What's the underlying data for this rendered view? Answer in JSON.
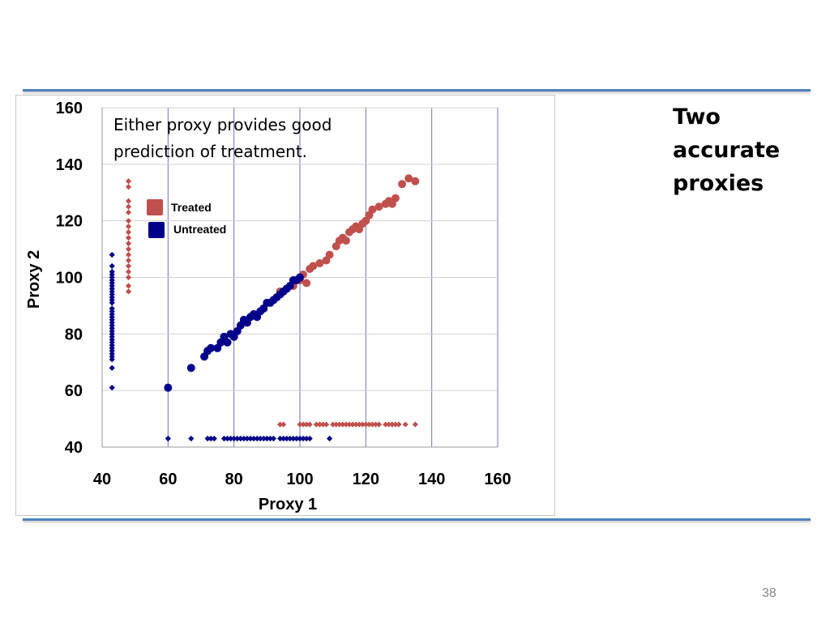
{
  "slide": {
    "side_title_lines": [
      "Two",
      "accurate",
      "proxies"
    ],
    "page_number": "38"
  },
  "colors": {
    "treated": "#c0504d",
    "untreated": "#00008b",
    "gridline": "#7070c0",
    "rule": "#4f81bd"
  },
  "chart_data": {
    "type": "scatter",
    "title": "",
    "xlabel": "Proxy 1",
    "ylabel": "Proxy 2",
    "xlim": [
      40,
      160
    ],
    "ylim": [
      40,
      160
    ],
    "x_ticks": [
      40,
      60,
      80,
      100,
      120,
      140,
      160
    ],
    "y_ticks": [
      40,
      60,
      80,
      100,
      120,
      140,
      160
    ],
    "grid": "vertical-lines",
    "legend_position": "upper-left",
    "annotation_lines": [
      "Either proxy provides good",
      "prediction of treatment."
    ],
    "series": [
      {
        "name": "Treated",
        "color": "#c0504d",
        "groups": [
          {
            "marker": "circle",
            "points": [
              [
                94,
                95
              ],
              [
                96,
                96
              ],
              [
                98,
                97
              ],
              [
                100,
                99
              ],
              [
                101,
                101
              ],
              [
                102,
                98
              ],
              [
                103,
                103
              ],
              [
                104,
                104
              ],
              [
                106,
                105
              ],
              [
                108,
                106
              ],
              [
                109,
                108
              ],
              [
                111,
                111
              ],
              [
                112,
                113
              ],
              [
                113,
                114
              ],
              [
                114,
                113
              ],
              [
                115,
                116
              ],
              [
                116,
                117
              ],
              [
                117,
                118
              ],
              [
                118,
                117
              ],
              [
                119,
                119
              ],
              [
                120,
                120
              ],
              [
                121,
                122
              ],
              [
                122,
                124
              ],
              [
                124,
                125
              ],
              [
                126,
                126
              ],
              [
                127,
                127
              ],
              [
                128,
                126
              ],
              [
                129,
                128
              ],
              [
                131,
                133
              ],
              [
                133,
                135
              ],
              [
                135,
                134
              ]
            ]
          },
          {
            "marker": "diamond",
            "points": [
              [
                48,
                134
              ],
              [
                48,
                132
              ],
              [
                48,
                127
              ],
              [
                48,
                125
              ],
              [
                48,
                123
              ],
              [
                48,
                120
              ],
              [
                48,
                118
              ],
              [
                48,
                116
              ],
              [
                48,
                114
              ],
              [
                48,
                112
              ],
              [
                48,
                110
              ],
              [
                48,
                108
              ],
              [
                48,
                106
              ],
              [
                48,
                104
              ],
              [
                48,
                102
              ],
              [
                48,
                100
              ],
              [
                48,
                97
              ],
              [
                48,
                95
              ]
            ]
          },
          {
            "marker": "diamond",
            "points": [
              [
                94,
                48
              ],
              [
                95,
                48
              ],
              [
                100,
                48
              ],
              [
                101,
                48
              ],
              [
                102,
                48
              ],
              [
                103,
                48
              ],
              [
                105,
                48
              ],
              [
                106,
                48
              ],
              [
                107,
                48
              ],
              [
                108,
                48
              ],
              [
                110,
                48
              ],
              [
                111,
                48
              ],
              [
                112,
                48
              ],
              [
                113,
                48
              ],
              [
                114,
                48
              ],
              [
                115,
                48
              ],
              [
                116,
                48
              ],
              [
                117,
                48
              ],
              [
                118,
                48
              ],
              [
                119,
                48
              ],
              [
                120,
                48
              ],
              [
                121,
                48
              ],
              [
                122,
                48
              ],
              [
                123,
                48
              ],
              [
                124,
                48
              ],
              [
                126,
                48
              ],
              [
                127,
                48
              ],
              [
                128,
                48
              ],
              [
                129,
                48
              ],
              [
                130,
                48
              ],
              [
                132,
                48
              ],
              [
                135,
                48
              ]
            ]
          }
        ]
      },
      {
        "name": "Untreated",
        "color": "#00008b",
        "groups": [
          {
            "marker": "circle",
            "points": [
              [
                60,
                61
              ],
              [
                67,
                68
              ],
              [
                71,
                72
              ],
              [
                72,
                74
              ],
              [
                73,
                75
              ],
              [
                75,
                75
              ],
              [
                76,
                77
              ],
              [
                77,
                79
              ],
              [
                78,
                77
              ],
              [
                79,
                80
              ],
              [
                80,
                79
              ],
              [
                81,
                81
              ],
              [
                82,
                83
              ],
              [
                83,
                85
              ],
              [
                84,
                84
              ],
              [
                85,
                86
              ],
              [
                86,
                87
              ],
              [
                87,
                86
              ],
              [
                88,
                88
              ],
              [
                89,
                89
              ],
              [
                90,
                91
              ],
              [
                91,
                91
              ],
              [
                92,
                92
              ],
              [
                93,
                93
              ],
              [
                94,
                94
              ],
              [
                95,
                95
              ],
              [
                96,
                96
              ],
              [
                97,
                97
              ],
              [
                98,
                99
              ],
              [
                99,
                99
              ],
              [
                100,
                100
              ]
            ]
          },
          {
            "marker": "diamond",
            "points": [
              [
                43,
                108
              ],
              [
                43,
                104
              ],
              [
                43,
                102
              ],
              [
                43,
                101
              ],
              [
                43,
                100
              ],
              [
                43,
                99
              ],
              [
                43,
                98
              ],
              [
                43,
                97
              ],
              [
                43,
                96
              ],
              [
                43,
                95
              ],
              [
                43,
                94
              ],
              [
                43,
                93
              ],
              [
                43,
                92
              ],
              [
                43,
                91
              ],
              [
                43,
                89
              ],
              [
                43,
                88
              ],
              [
                43,
                87
              ],
              [
                43,
                86
              ],
              [
                43,
                85
              ],
              [
                43,
                84
              ],
              [
                43,
                83
              ],
              [
                43,
                82
              ],
              [
                43,
                81
              ],
              [
                43,
                80
              ],
              [
                43,
                79
              ],
              [
                43,
                78
              ],
              [
                43,
                77
              ],
              [
                43,
                76
              ],
              [
                43,
                75
              ],
              [
                43,
                74
              ],
              [
                43,
                73
              ],
              [
                43,
                72
              ],
              [
                43,
                71
              ],
              [
                43,
                68
              ],
              [
                43,
                61
              ]
            ]
          },
          {
            "marker": "diamond",
            "points": [
              [
                60,
                43
              ],
              [
                67,
                43
              ],
              [
                72,
                43
              ],
              [
                73,
                43
              ],
              [
                74,
                43
              ],
              [
                77,
                43
              ],
              [
                78,
                43
              ],
              [
                79,
                43
              ],
              [
                80,
                43
              ],
              [
                81,
                43
              ],
              [
                82,
                43
              ],
              [
                83,
                43
              ],
              [
                84,
                43
              ],
              [
                85,
                43
              ],
              [
                86,
                43
              ],
              [
                87,
                43
              ],
              [
                88,
                43
              ],
              [
                89,
                43
              ],
              [
                90,
                43
              ],
              [
                91,
                43
              ],
              [
                92,
                43
              ],
              [
                94,
                43
              ],
              [
                95,
                43
              ],
              [
                96,
                43
              ],
              [
                97,
                43
              ],
              [
                98,
                43
              ],
              [
                99,
                43
              ],
              [
                100,
                43
              ],
              [
                101,
                43
              ],
              [
                102,
                43
              ],
              [
                103,
                43
              ],
              [
                109,
                43
              ]
            ]
          }
        ]
      }
    ]
  }
}
